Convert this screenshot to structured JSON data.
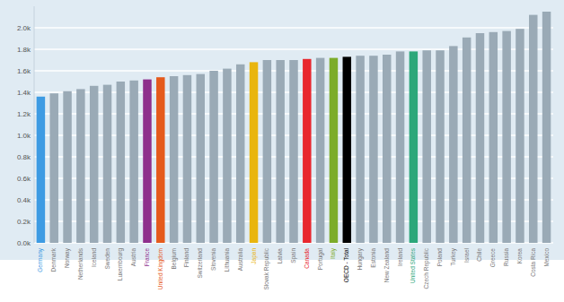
{
  "chart_data": {
    "type": "bar",
    "categories": [
      "Germany",
      "Denmark",
      "Norway",
      "Netherlands",
      "Iceland",
      "Sweden",
      "Luxembourg",
      "Austria",
      "France",
      "United Kingdom",
      "Belgium",
      "Finland",
      "Switzerland",
      "Slovenia",
      "Lithuania",
      "Australia",
      "Japan",
      "Slovak Republic",
      "Latvia",
      "Spain",
      "Canada",
      "Portugal",
      "Italy",
      "OECD - Total",
      "Hungary",
      "Estonia",
      "New Zealand",
      "Ireland",
      "United States",
      "Czech Republic",
      "Poland",
      "Turkey",
      "Israel",
      "Chile",
      "Greece",
      "Russia",
      "Korea",
      "Costa Rica",
      "Mexico"
    ],
    "values": [
      1360,
      1390,
      1410,
      1430,
      1460,
      1470,
      1500,
      1510,
      1520,
      1540,
      1550,
      1560,
      1570,
      1600,
      1620,
      1660,
      1680,
      1700,
      1700,
      1700,
      1710,
      1720,
      1720,
      1730,
      1740,
      1740,
      1750,
      1780,
      1780,
      1790,
      1790,
      1830,
      1910,
      1950,
      1960,
      1970,
      1990,
      2120,
      2150
    ],
    "colors": [
      "#3d9be3",
      "#9aaab6",
      "#9aaab6",
      "#9aaab6",
      "#9aaab6",
      "#9aaab6",
      "#9aaab6",
      "#9aaab6",
      "#8e2f8c",
      "#e55a1c",
      "#9aaab6",
      "#9aaab6",
      "#9aaab6",
      "#9aaab6",
      "#9aaab6",
      "#9aaab6",
      "#e9b50e",
      "#9aaab6",
      "#9aaab6",
      "#9aaab6",
      "#e8272e",
      "#9aaab6",
      "#7cac2a",
      "#000000",
      "#9aaab6",
      "#9aaab6",
      "#9aaab6",
      "#9aaab6",
      "#2ca77a",
      "#9aaab6",
      "#9aaab6",
      "#9aaab6",
      "#9aaab6",
      "#9aaab6",
      "#9aaab6",
      "#9aaab6",
      "#9aaab6",
      "#9aaab6",
      "#9aaab6"
    ],
    "ylim": [
      0,
      2200
    ],
    "yticks": [
      {
        "value": 0,
        "label": "0.0k"
      },
      {
        "value": 200,
        "label": "0.2k"
      },
      {
        "value": 400,
        "label": "0.4k"
      },
      {
        "value": 600,
        "label": "0.6k"
      },
      {
        "value": 800,
        "label": "0.8k"
      },
      {
        "value": 1000,
        "label": "1.0k"
      },
      {
        "value": 1200,
        "label": "1.2k"
      },
      {
        "value": 1400,
        "label": "1.4k"
      },
      {
        "value": 1600,
        "label": "1.6k"
      },
      {
        "value": 1800,
        "label": "1.8k"
      },
      {
        "value": 2000,
        "label": "2.0k"
      }
    ],
    "grid": true
  }
}
